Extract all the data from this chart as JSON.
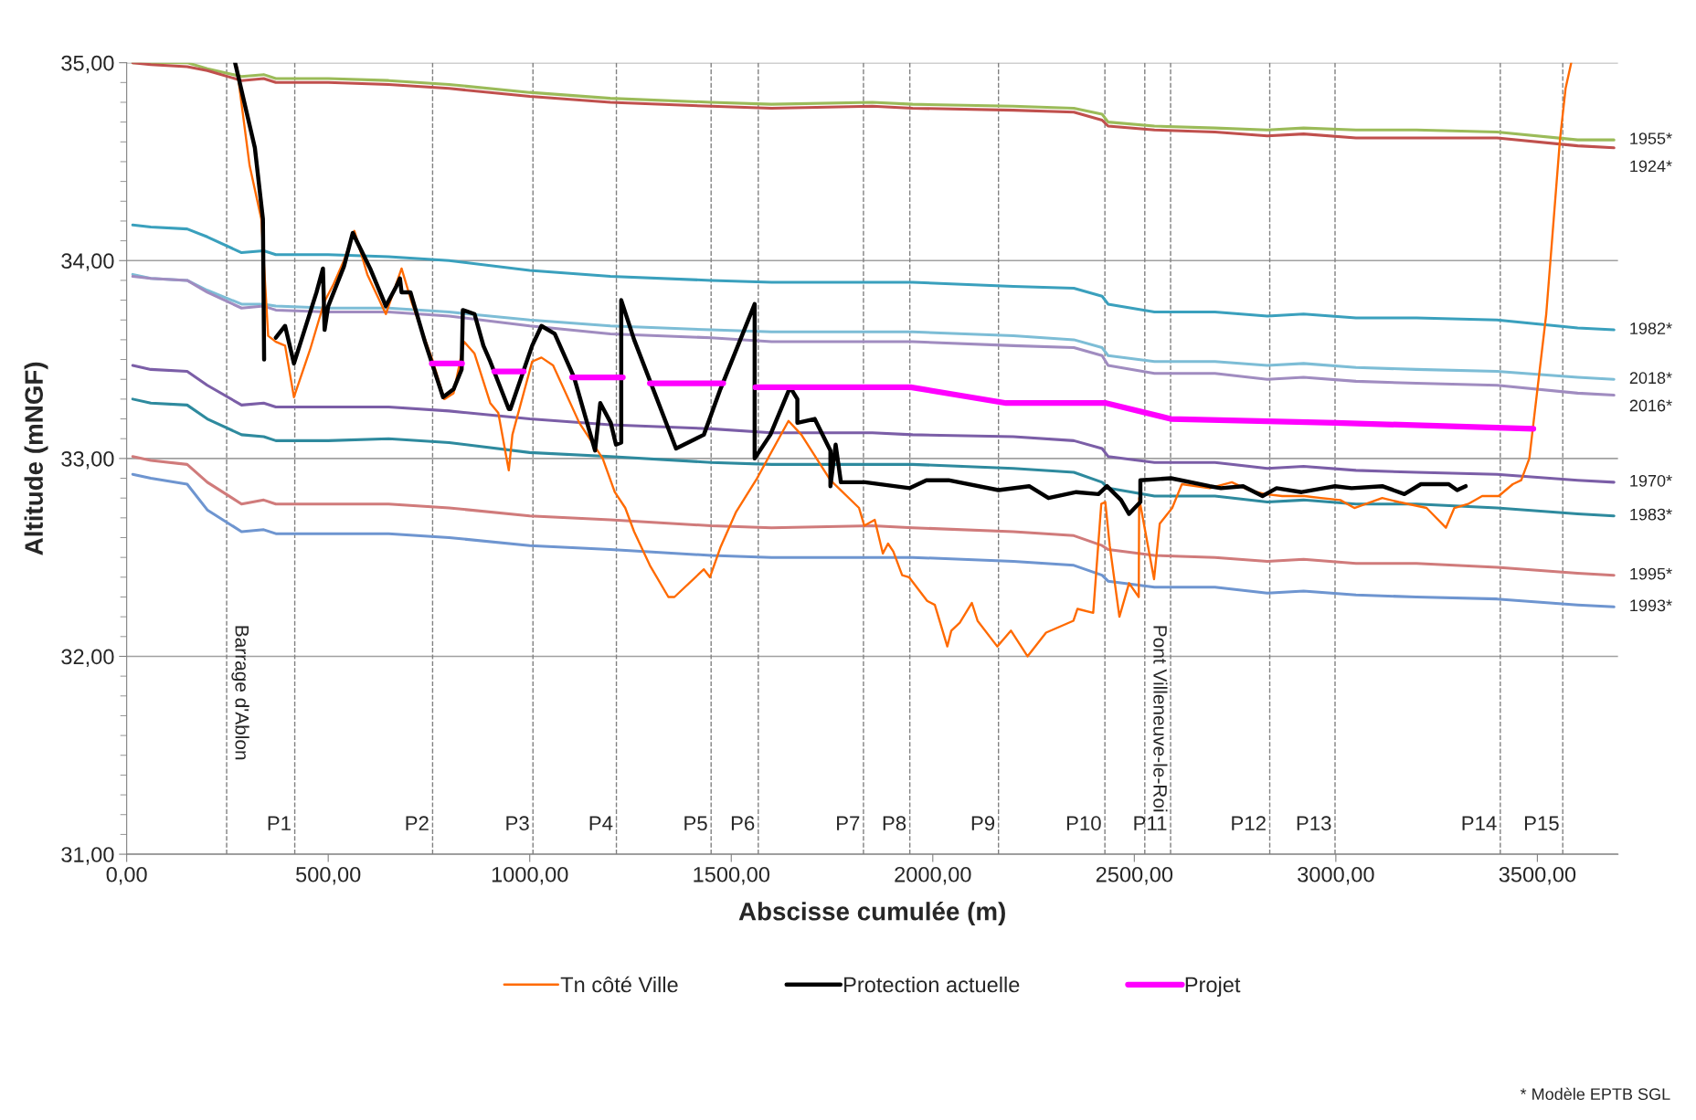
{
  "chart_data": {
    "type": "line",
    "xlabel": "Abscisse cumulée (m)",
    "ylabel": "Altitude (mNGF)",
    "xlim": [
      0,
      3700
    ],
    "ylim": [
      31,
      35
    ],
    "xticks": [
      {
        "value": 0,
        "label": "0,00"
      },
      {
        "value": 500,
        "label": "500,00"
      },
      {
        "value": 1000,
        "label": "1000,00"
      },
      {
        "value": 1500,
        "label": "1500,00"
      },
      {
        "value": 2000,
        "label": "2000,00"
      },
      {
        "value": 2500,
        "label": "2500,00"
      },
      {
        "value": 3000,
        "label": "3000,00"
      },
      {
        "value": 3500,
        "label": "3500,00"
      }
    ],
    "yticks": [
      {
        "value": 31,
        "label": "31,00"
      },
      {
        "value": 32,
        "label": "32,00"
      },
      {
        "value": 33,
        "label": "33,00"
      },
      {
        "value": 34,
        "label": "34,00"
      },
      {
        "value": 35,
        "label": "35,00"
      }
    ],
    "grid": "y",
    "legend": "bottom",
    "marker": "none",
    "line_style": "solid",
    "x": [
      15,
      60,
      150,
      200,
      285,
      340,
      370,
      500,
      650,
      800,
      1000,
      1200,
      1450,
      1600,
      1850,
      1950,
      2200,
      2350,
      2420,
      2435,
      2550,
      2700,
      2830,
      2920,
      3050,
      3200,
      3400,
      3600,
      3690
    ],
    "series": [
      {
        "name": "1955*",
        "color": "#9bbb59",
        "values": [
          35.0,
          35.0,
          35.0,
          34.97,
          34.93,
          34.94,
          34.92,
          34.92,
          34.91,
          34.89,
          34.85,
          34.82,
          34.8,
          34.79,
          34.8,
          34.79,
          34.78,
          34.77,
          34.74,
          34.7,
          34.68,
          34.67,
          34.66,
          34.67,
          34.66,
          34.66,
          34.65,
          34.61,
          34.61
        ]
      },
      {
        "name": "1924*",
        "color": "#c0504d",
        "values": [
          35.0,
          34.99,
          34.98,
          34.96,
          34.91,
          34.92,
          34.9,
          34.9,
          34.89,
          34.87,
          34.83,
          34.8,
          34.78,
          34.77,
          34.78,
          34.77,
          34.76,
          34.75,
          34.71,
          34.68,
          34.66,
          34.65,
          34.63,
          34.64,
          34.62,
          34.62,
          34.62,
          34.58,
          34.57
        ]
      },
      {
        "name": "1982*",
        "color": "#3aa0bd",
        "values": [
          34.18,
          34.17,
          34.16,
          34.12,
          34.04,
          34.05,
          34.03,
          34.03,
          34.02,
          34.0,
          33.95,
          33.92,
          33.9,
          33.89,
          33.89,
          33.89,
          33.87,
          33.86,
          33.82,
          33.78,
          33.74,
          33.74,
          33.72,
          33.73,
          33.71,
          33.71,
          33.7,
          33.66,
          33.65
        ]
      },
      {
        "name": "2018*",
        "color": "#7dbdd6",
        "values": [
          33.93,
          33.91,
          33.9,
          33.85,
          33.78,
          33.78,
          33.77,
          33.76,
          33.76,
          33.74,
          33.7,
          33.67,
          33.65,
          33.64,
          33.64,
          33.64,
          33.62,
          33.6,
          33.56,
          33.52,
          33.49,
          33.49,
          33.47,
          33.48,
          33.46,
          33.45,
          33.44,
          33.41,
          33.4
        ]
      },
      {
        "name": "2016*",
        "color": "#a08cc0",
        "values": [
          33.92,
          33.91,
          33.9,
          33.84,
          33.76,
          33.77,
          33.75,
          33.74,
          33.74,
          33.72,
          33.67,
          33.63,
          33.61,
          33.59,
          33.59,
          33.59,
          33.57,
          33.56,
          33.52,
          33.47,
          33.43,
          33.43,
          33.4,
          33.41,
          33.39,
          33.38,
          33.37,
          33.33,
          33.32
        ]
      },
      {
        "name": "1970*",
        "color": "#7b5ea7",
        "values": [
          33.47,
          33.45,
          33.44,
          33.37,
          33.27,
          33.28,
          33.26,
          33.26,
          33.26,
          33.24,
          33.2,
          33.17,
          33.15,
          33.13,
          33.13,
          33.12,
          33.11,
          33.09,
          33.05,
          33.01,
          32.98,
          32.98,
          32.95,
          32.96,
          32.94,
          32.93,
          32.92,
          32.89,
          32.88
        ]
      },
      {
        "name": "1983*",
        "color": "#2e8a9e",
        "values": [
          33.3,
          33.28,
          33.27,
          33.2,
          33.12,
          33.11,
          33.09,
          33.09,
          33.1,
          33.08,
          33.03,
          33.01,
          32.98,
          32.97,
          32.97,
          32.97,
          32.95,
          32.93,
          32.88,
          32.85,
          32.81,
          32.81,
          32.78,
          32.79,
          32.77,
          32.77,
          32.75,
          32.72,
          32.71
        ]
      },
      {
        "name": "1995*",
        "color": "#d07b7b",
        "values": [
          33.01,
          32.99,
          32.97,
          32.88,
          32.77,
          32.79,
          32.77,
          32.77,
          32.77,
          32.75,
          32.71,
          32.69,
          32.66,
          32.65,
          32.66,
          32.65,
          32.63,
          32.61,
          32.56,
          32.54,
          32.51,
          32.5,
          32.48,
          32.49,
          32.47,
          32.47,
          32.45,
          32.42,
          32.41
        ]
      },
      {
        "name": "1993*",
        "color": "#6e95d0",
        "values": [
          32.92,
          32.9,
          32.87,
          32.74,
          32.63,
          32.64,
          32.62,
          32.62,
          32.62,
          32.6,
          32.56,
          32.54,
          32.51,
          32.5,
          32.5,
          32.5,
          32.48,
          32.46,
          32.41,
          32.38,
          32.35,
          32.35,
          32.32,
          32.33,
          32.31,
          32.3,
          32.29,
          32.26,
          32.25
        ]
      },
      {
        "name": "Tn côté Ville",
        "color": "#ff6a00",
        "x": [
          273,
          305,
          334,
          351,
          370,
          393,
          415,
          455,
          490,
          513,
          539,
          565,
          597,
          643,
          682,
          707,
          760,
          788,
          811,
          837,
          863,
          902,
          922,
          948,
          957,
          1006,
          1029,
          1058,
          1123,
          1181,
          1211,
          1237,
          1259,
          1298,
          1344,
          1359,
          1432,
          1447,
          1473,
          1512,
          1564,
          1642,
          1674,
          1746,
          1817,
          1830,
          1856,
          1876,
          1889,
          1902,
          1924,
          1941,
          1986,
          2005,
          2036,
          2046,
          2067,
          2097,
          2111,
          2160,
          2177,
          2194,
          2235,
          2281,
          2349,
          2359,
          2398,
          2418,
          2428,
          2439,
          2463,
          2487,
          2511,
          2512,
          2549,
          2563,
          2594,
          2618,
          2687,
          2742,
          2784,
          2825,
          2867,
          2922,
          2963,
          3011,
          3046,
          3115,
          3156,
          3225,
          3273,
          3294,
          3328,
          3363,
          3404,
          3439,
          3460,
          3480,
          3522,
          3556,
          3570,
          3584
        ],
        "values": [
          34.98,
          34.48,
          34.21,
          33.62,
          33.59,
          33.57,
          33.31,
          33.55,
          33.79,
          33.88,
          34.0,
          34.15,
          33.93,
          33.73,
          33.96,
          33.79,
          33.49,
          33.3,
          33.33,
          33.59,
          33.53,
          33.28,
          33.23,
          32.94,
          33.12,
          33.49,
          33.51,
          33.47,
          33.18,
          33.0,
          32.83,
          32.75,
          32.63,
          32.46,
          32.3,
          32.3,
          32.44,
          32.4,
          32.55,
          32.73,
          32.9,
          33.19,
          33.12,
          32.89,
          32.75,
          32.66,
          32.69,
          32.52,
          32.57,
          32.53,
          32.41,
          32.4,
          32.28,
          32.26,
          32.05,
          32.13,
          32.17,
          32.27,
          32.18,
          32.05,
          32.09,
          32.13,
          32.0,
          32.12,
          32.18,
          32.24,
          32.22,
          32.77,
          32.78,
          32.56,
          32.2,
          32.37,
          32.3,
          32.8,
          32.39,
          32.67,
          32.75,
          32.87,
          32.85,
          32.88,
          32.84,
          32.82,
          32.81,
          32.81,
          32.8,
          32.79,
          32.75,
          32.8,
          32.78,
          32.75,
          32.65,
          32.75,
          32.77,
          32.81,
          32.81,
          32.87,
          32.89,
          33.0,
          33.73,
          34.61,
          34.87,
          35.0
        ]
      },
      {
        "name": "Protection actuelle",
        "color": "#000000",
        "x": [
          269,
          318,
          338,
          341,
          null,
          370,
          393,
          415,
          471,
          487,
          491,
          500,
          539,
          561,
          604,
          643,
          669,
          678,
          682,
          704,
          740,
          785,
          811,
          831,
          834,
          863,
          885,
          902,
          948,
          952,
          1006,
          1029,
          1062,
          1110,
          1162,
          1175,
          1201,
          1214,
          1227,
          1227,
          1259,
          1363,
          1432,
          1473,
          1558,
          1558,
          1597,
          1646,
          1664,
          1664,
          1707,
          1746,
          1746,
          1759,
          1772,
          1824,
          1832,
          1943,
          1984,
          2039,
          2163,
          2239,
          2287,
          2356,
          2411,
          2432,
          2467,
          2487,
          2515,
          2515,
          2591,
          2687,
          2715,
          2770,
          2818,
          2853,
          2915,
          2970,
          2998,
          3039,
          3115,
          3170,
          3211,
          3280,
          3301,
          3322
        ],
        "values": [
          35.0,
          34.57,
          34.21,
          33.5,
          null,
          33.61,
          33.67,
          33.48,
          33.84,
          33.96,
          33.65,
          33.77,
          33.97,
          34.14,
          33.96,
          33.77,
          33.87,
          33.91,
          33.84,
          33.84,
          33.59,
          33.31,
          33.35,
          33.45,
          33.75,
          33.73,
          33.57,
          33.49,
          33.25,
          33.25,
          33.57,
          33.67,
          33.63,
          33.41,
          33.04,
          33.28,
          33.18,
          33.07,
          33.08,
          33.8,
          33.6,
          33.05,
          33.12,
          33.35,
          33.78,
          33.0,
          33.12,
          33.36,
          33.3,
          33.18,
          33.2,
          33.04,
          32.86,
          33.07,
          32.88,
          32.88,
          32.88,
          32.85,
          32.89,
          32.89,
          32.84,
          32.86,
          32.8,
          32.83,
          32.82,
          32.86,
          32.79,
          32.72,
          32.78,
          32.89,
          32.9,
          32.86,
          32.85,
          32.86,
          32.81,
          32.85,
          32.83,
          32.85,
          32.86,
          32.85,
          32.86,
          32.82,
          32.87,
          32.87,
          32.84,
          32.86
        ]
      },
      {
        "name": "Projet",
        "color": "#ff00ff",
        "x": [
          757,
          832,
          null,
          912,
          985,
          null,
          1105,
          1231,
          null,
          1298,
          1480,
          null,
          1560,
          1945,
          2182,
          2430,
          2590,
          3000,
          3490
        ],
        "values": [
          33.48,
          33.48,
          null,
          33.44,
          33.44,
          null,
          33.41,
          33.41,
          null,
          33.38,
          33.38,
          null,
          33.36,
          33.36,
          33.28,
          33.28,
          33.2,
          33.18,
          33.15
        ]
      }
    ],
    "ref_lines": [
      {
        "axis": "x",
        "value": 248,
        "label": "Barrage d'Ablon",
        "color": "#808080",
        "line_style": "dashed"
      },
      {
        "axis": "x",
        "value": 417,
        "label": "P1",
        "color": "#808080",
        "line_style": "dashed"
      },
      {
        "axis": "x",
        "value": 759,
        "label": "P2",
        "color": "#808080",
        "line_style": "dashed"
      },
      {
        "axis": "x",
        "value": 1008,
        "label": "P3",
        "color": "#808080",
        "line_style": "dashed"
      },
      {
        "axis": "x",
        "value": 1215,
        "label": "P4",
        "color": "#808080",
        "line_style": "dashed"
      },
      {
        "axis": "x",
        "value": 1450,
        "label": "P5",
        "color": "#808080",
        "line_style": "dashed"
      },
      {
        "axis": "x",
        "value": 1567,
        "label": "P6",
        "color": "#808080",
        "line_style": "dashed"
      },
      {
        "axis": "x",
        "value": 1828,
        "label": "P7",
        "color": "#808080",
        "line_style": "dashed"
      },
      {
        "axis": "x",
        "value": 1943,
        "label": "P8",
        "color": "#808080",
        "line_style": "dashed"
      },
      {
        "axis": "x",
        "value": 2163,
        "label": "P9",
        "color": "#808080",
        "line_style": "dashed"
      },
      {
        "axis": "x",
        "value": 2427,
        "label": "P10",
        "color": "#808080",
        "line_style": "dashed"
      },
      {
        "axis": "x",
        "value": 2526,
        "label": "Pont Villeneuve-le-Roi",
        "color": "#808080",
        "line_style": "dashed"
      },
      {
        "axis": "x",
        "value": 2590,
        "label": "P11",
        "color": "#808080",
        "line_style": "dashed"
      },
      {
        "axis": "x",
        "value": 2836,
        "label": "P12",
        "color": "#808080",
        "line_style": "dashed"
      },
      {
        "axis": "x",
        "value": 2998,
        "label": "P13",
        "color": "#808080",
        "line_style": "dashed"
      },
      {
        "axis": "x",
        "value": 3408,
        "label": "P14",
        "color": "#808080",
        "line_style": "dashed"
      },
      {
        "axis": "x",
        "value": 3563,
        "label": "P15",
        "color": "#808080",
        "line_style": "dashed"
      }
    ],
    "annotations": [
      "* Modèle EPTB SGL"
    ]
  }
}
